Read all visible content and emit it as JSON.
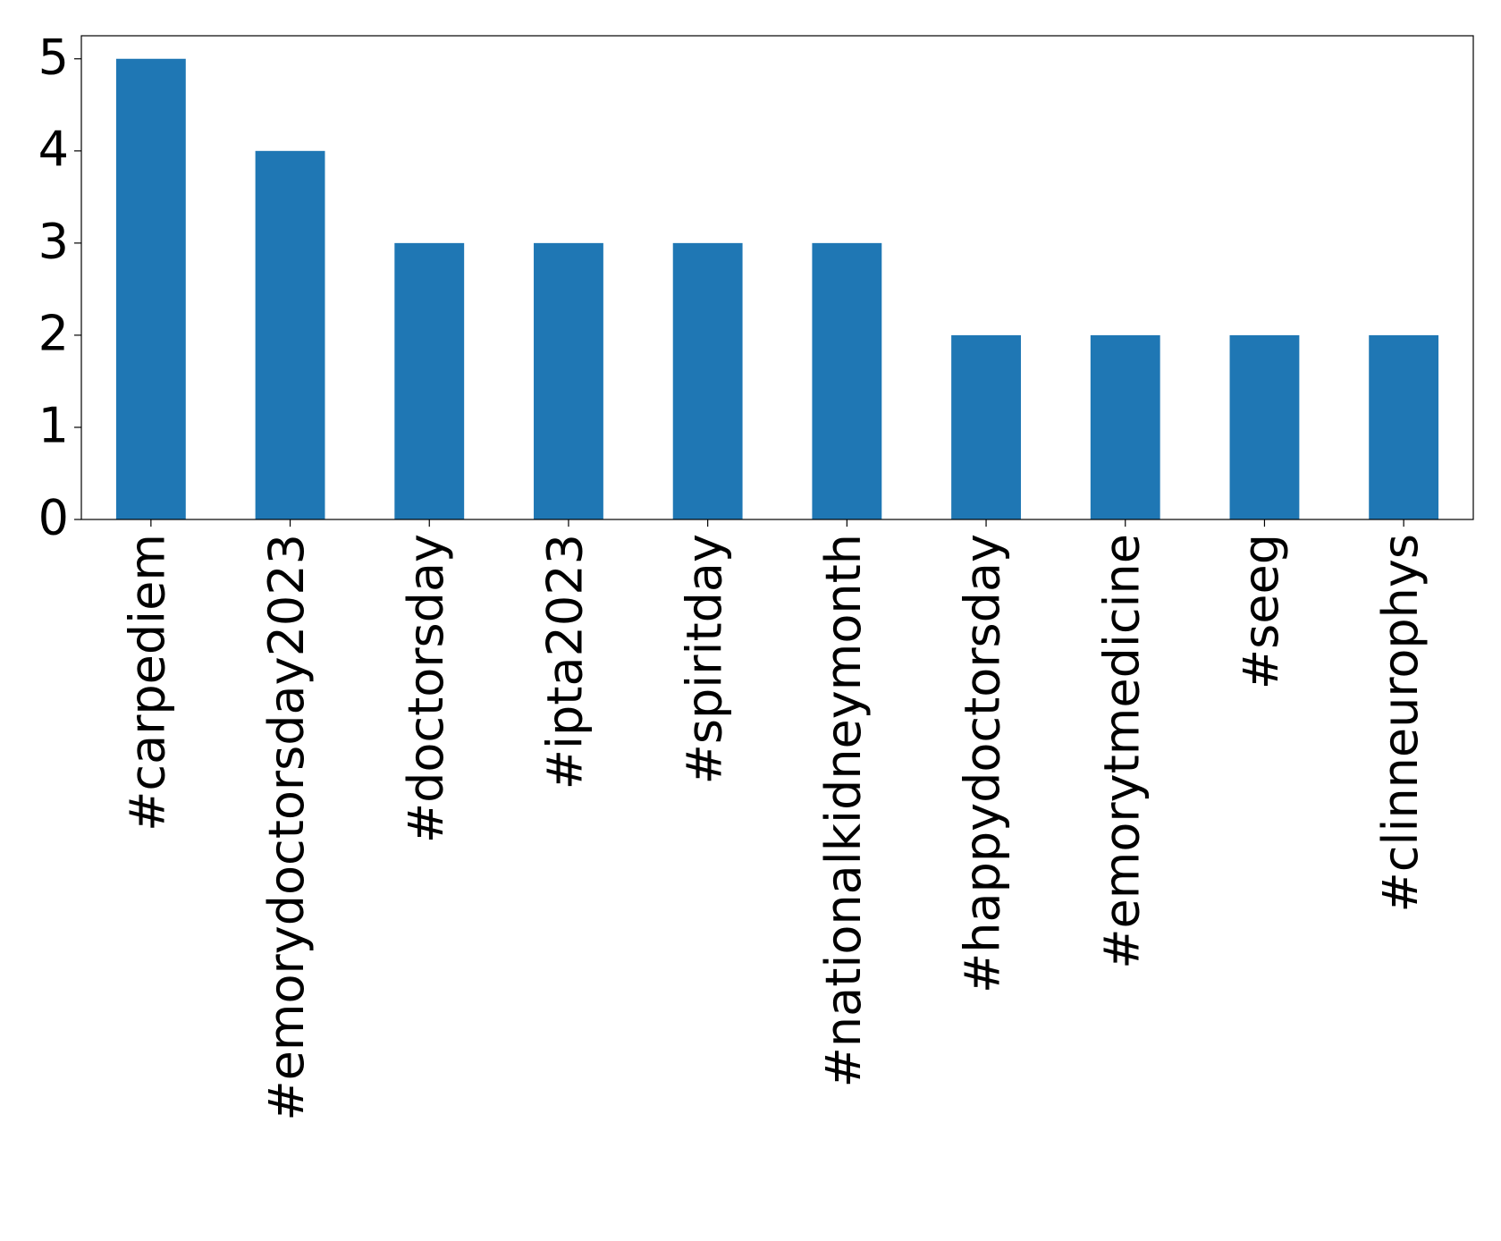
{
  "chart_data": {
    "type": "bar",
    "categories": [
      "#carpediem",
      "#emorydoctorsday2023",
      "#doctorsday",
      "#ipta2023",
      "#spiritday",
      "#nationalkidneymonth",
      "#happydoctorsday",
      "#emorytmedicine",
      "#seeg",
      "#clinneurophys"
    ],
    "values": [
      5,
      4,
      3,
      3,
      3,
      3,
      2,
      2,
      2,
      2
    ],
    "color": "#1f77b4",
    "ylim": [
      0,
      5.25
    ],
    "yticks": [
      0,
      1,
      2,
      3,
      4,
      5
    ],
    "grid": false
  }
}
